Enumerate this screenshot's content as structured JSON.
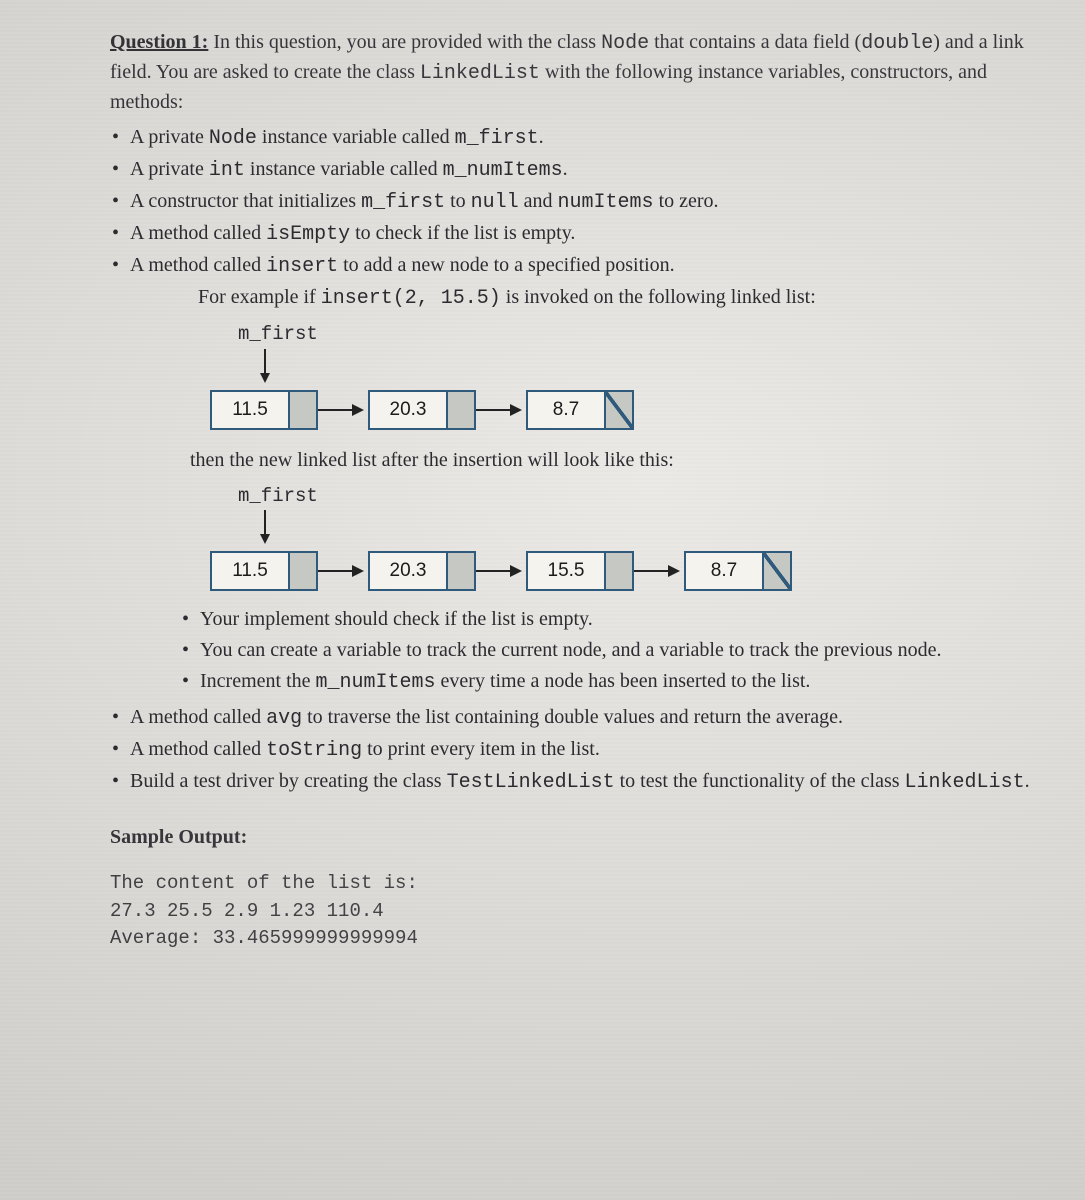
{
  "question": {
    "title": "Question 1:",
    "intro_a": " In this question, you are provided with the class ",
    "node": "Node",
    "intro_b": " that contains a data field (",
    "double": "double",
    "intro_c": ") and a link field. You are asked to create the class ",
    "linkedlist": "LinkedList",
    "intro_d": " with the following instance variables, constructors, and methods:"
  },
  "bullets": {
    "b1a": "A private ",
    "b1b": "Node",
    "b1c": " instance variable called ",
    "b1d": "m_first",
    "b1e": ".",
    "b2a": "A private ",
    "b2b": "int",
    "b2c": " instance variable called ",
    "b2d": "m_numItems",
    "b2e": ".",
    "b3a": "A constructor that initializes ",
    "b3b": "m_first",
    "b3c": " to ",
    "b3d": "null",
    "b3e": " and ",
    "b3f": "numItems",
    "b3g": " to zero.",
    "b4a": "A method called ",
    "b4b": "isEmpty",
    "b4c": " to check if the list is empty.",
    "b5a": "A method called ",
    "b5b": "insert",
    "b5c": " to add a new node to a specified position.",
    "b5_ex_a": "For example if ",
    "b5_ex_b": "insert(2, 15.5)",
    "b5_ex_c": " is invoked on the following linked list:"
  },
  "diagrams": {
    "label": "m_first",
    "before": [
      "11.5",
      "20.3",
      "8.7"
    ],
    "after_text": "then the new linked list after the insertion will look like this:",
    "after": [
      "11.5",
      "20.3",
      "15.5",
      "8.7"
    ],
    "node_border": "#2f5a7b",
    "ptr_fill": "#c5c8c3"
  },
  "inner": {
    "i1": "Your implement should check if the list is empty.",
    "i2": "You can create a variable to track the current node, and a variable to track the previous node.",
    "i3a": "Increment the ",
    "i3b": "m_numItems",
    "i3c": " every time a node has been inserted to the list."
  },
  "bullets2": {
    "b6a": "A method called ",
    "b6b": "avg",
    "b6c": " to traverse the list containing double values and return the average.",
    "b7a": "A method called ",
    "b7b": "toString",
    "b7c": " to print every item in the list.",
    "b8a": "Build a test driver by creating the class ",
    "b8b": "TestLinkedList",
    "b8c": " to test the functionality of the class ",
    "b8d": "LinkedList",
    "b8e": "."
  },
  "sample": {
    "heading": "Sample Output:",
    "line1": "The content of the list is:",
    "line2": "27.3 25.5 2.9 1.23 110.4",
    "line3": "Average: 33.465999999999994"
  }
}
